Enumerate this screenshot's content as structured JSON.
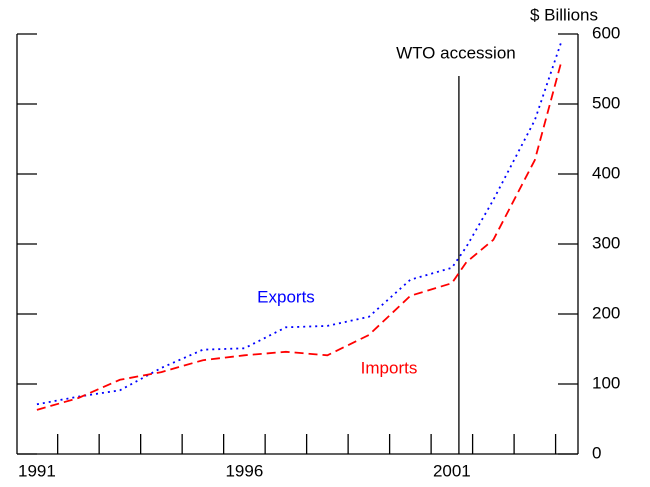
{
  "chart_data": {
    "type": "line",
    "y_axis_label": "$ Billions",
    "annotation": {
      "text": "WTO accession",
      "x": 2001.17
    },
    "x": [
      1991,
      1992,
      1993,
      1994,
      1995,
      1996,
      1997,
      1998,
      1999,
      2000,
      2001,
      2001.35,
      2002,
      2003,
      2003.65
    ],
    "series": [
      {
        "name": "Exports",
        "color": "#0000ff",
        "values": [
          71,
          82,
          91,
          123,
          149,
          151,
          181,
          183,
          196,
          249,
          266,
          296,
          363,
          477,
          591
        ]
      },
      {
        "name": "Imports",
        "color": "#ff0000",
        "values": [
          63,
          80,
          106,
          117,
          134,
          141,
          146,
          141,
          170,
          226,
          244,
          274,
          306,
          420,
          563
        ]
      }
    ],
    "xlim": [
      1990.52,
      2004.04
    ],
    "xticks": [
      1991,
      1996,
      2001
    ],
    "minor_xticks": [
      1991.5,
      1992.5,
      1993.5,
      1994.5,
      1995.5,
      1996.5,
      1997.5,
      1998.5,
      1999.5,
      2000.5,
      2001.5,
      2002.5,
      2003.5
    ],
    "ylim": [
      0,
      600
    ],
    "yticks": [
      0,
      100,
      200,
      300,
      400,
      500,
      600
    ],
    "grid": false
  }
}
